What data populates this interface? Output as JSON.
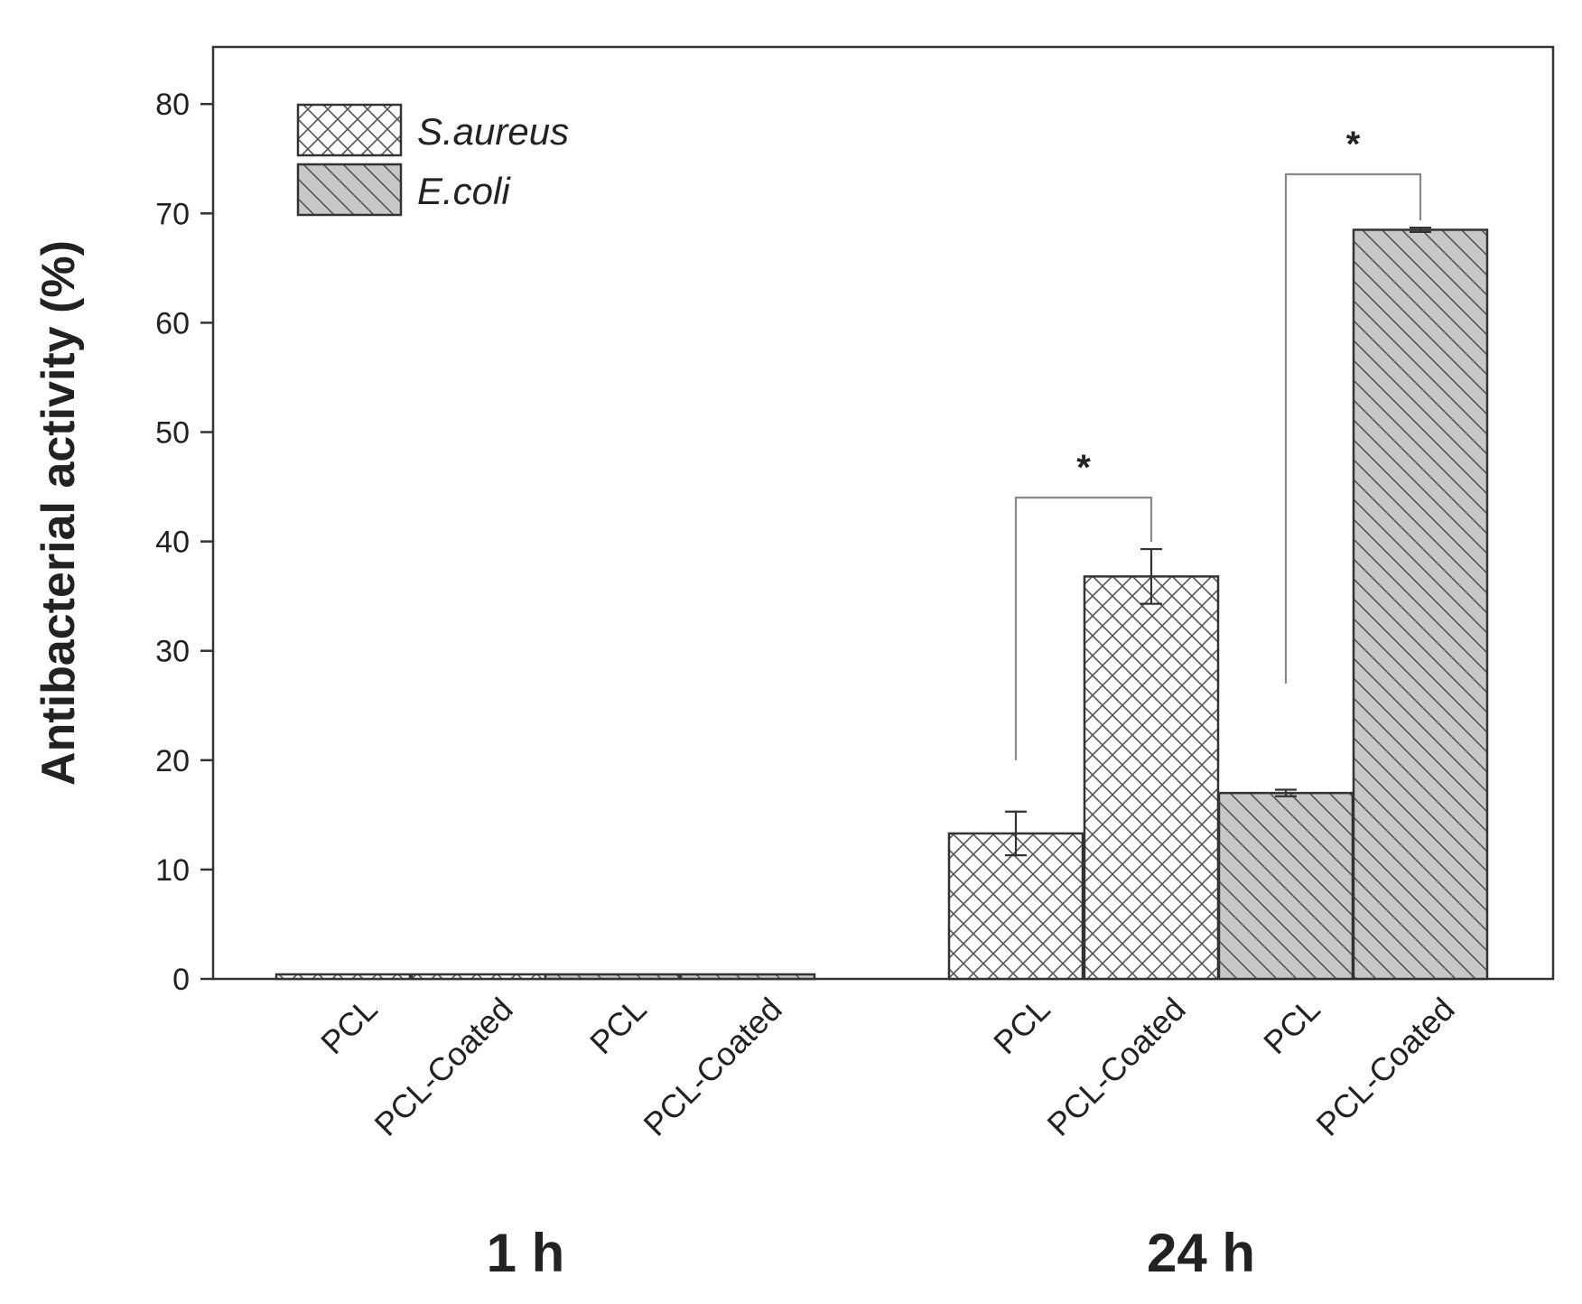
{
  "chart_data": {
    "type": "bar",
    "title": "",
    "xlabel": "",
    "ylabel": "Antibacterial activity (%)",
    "ylim": [
      0,
      85
    ],
    "yticks": [
      0,
      10,
      20,
      30,
      40,
      50,
      60,
      70,
      80
    ],
    "grid": false,
    "legend_position": "top-left",
    "groups": [
      {
        "label": "1 h",
        "categories": [
          "PCL",
          "PCL-Coated",
          "PCL",
          "PCL-Coated"
        ]
      },
      {
        "label": "24 h",
        "categories": [
          "PCL",
          "PCL-Coated",
          "PCL",
          "PCL-Coated"
        ]
      }
    ],
    "series": [
      {
        "name": "S.aureus",
        "pattern": "crosshatch",
        "fill": "#ffffff",
        "values_1h": [
          0,
          0
        ],
        "values_24h": [
          13.3,
          36.8
        ],
        "errors_24h": [
          2.0,
          2.5
        ]
      },
      {
        "name": "E.coli",
        "pattern": "diagonal",
        "fill": "#c8c8c8",
        "values_1h": [
          0,
          0
        ],
        "values_24h": [
          17.0,
          68.5
        ],
        "errors_24h": [
          0.3,
          0.2
        ]
      }
    ],
    "significance": [
      {
        "group": "24 h",
        "series": "S.aureus",
        "from": "PCL",
        "to": "PCL-Coated",
        "label": "*"
      },
      {
        "group": "24 h",
        "series": "E.coli",
        "from": "PCL",
        "to": "PCL-Coated",
        "label": "*"
      }
    ]
  }
}
